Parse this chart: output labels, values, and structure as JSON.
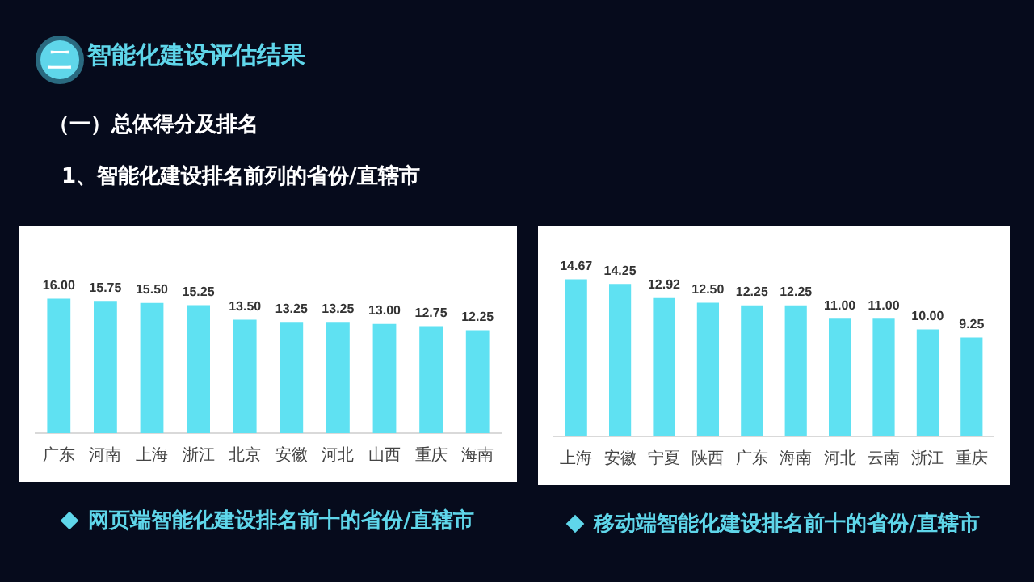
{
  "chart_data": [
    {
      "type": "bar",
      "title": "网页端智能化建设排名前十的省份/直辖市",
      "annotations": [
        "二",
        "智能化建设评估结果",
        "（一）总体得分及排名",
        "1、智能化建设排名前列的省份/直辖市"
      ],
      "categories": [
        "广东",
        "河南",
        "上海",
        "浙江",
        "北京",
        "安徽",
        "河北",
        "山西",
        "重庆",
        "海南"
      ],
      "values": [
        16.0,
        15.75,
        15.5,
        15.25,
        13.5,
        13.25,
        13.25,
        13.0,
        12.75,
        12.25
      ],
      "value_labels": [
        "16.00",
        "15.75",
        "15.50",
        "15.25",
        "13.50",
        "13.25",
        "13.25",
        "13.00",
        "12.75",
        "12.25"
      ],
      "color": "#5fe1f2",
      "grid": false,
      "legend": false,
      "tick_labels": "x"
    },
    {
      "type": "bar",
      "title": "移动端智能化建设排名前十的省份/直辖市",
      "categories": [
        "上海",
        "安徽",
        "宁夏",
        "陕西",
        "广东",
        "海南",
        "河北",
        "云南",
        "浙江",
        "重庆"
      ],
      "values": [
        14.67,
        14.25,
        12.92,
        12.5,
        12.25,
        12.25,
        11.0,
        11.0,
        10.0,
        9.25
      ],
      "value_labels": [
        "14.67",
        "14.25",
        "12.92",
        "12.50",
        "12.25",
        "12.25",
        "11.00",
        "11.00",
        "10.00",
        "9.25"
      ],
      "color": "#5fe1f2",
      "grid": false,
      "legend": false,
      "tick_labels": "x"
    }
  ]
}
